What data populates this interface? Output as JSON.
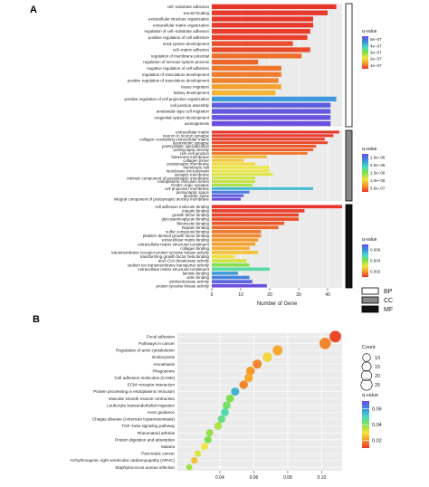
{
  "figure": {
    "panel_a_label": "A",
    "panel_b_label": "B"
  },
  "chart_data": [
    {
      "type": "bar",
      "orientation": "horizontal",
      "xlabel": "Number of Gene",
      "xlim": [
        0,
        45
      ],
      "xticks": [
        "0",
        "10",
        "20",
        "30",
        "40"
      ],
      "xtick_values": [
        0,
        10,
        20,
        30,
        40
      ],
      "legend_categories": [
        {
          "label": "BP",
          "color": "#ffffff"
        },
        {
          "label": "CC",
          "color": "#888888"
        },
        {
          "label": "MF",
          "color": "#111111"
        }
      ],
      "groups": [
        {
          "name": "BP",
          "bar_color": "#ffffff",
          "legend_title": "q-value",
          "legend_ticks": [
            "5e−07",
            "4e−07",
            "3e−07",
            "2e−07",
            "1e−07"
          ],
          "color_stops": [
            "#6a4fe0",
            "#3d8de0",
            "#48d9c4",
            "#7fe04d",
            "#f2e640",
            "#f59a2a",
            "#e8352a"
          ],
          "categories": [
            "cell−substrate adhesion",
            "wound healing",
            "extracellular structure organization",
            "extracellular matrix organization",
            "regulation of cell−substrate adhesion",
            "positive regulation of cell adhesion",
            "renal system development",
            "cell−matrix adhesion",
            "regulation of membrane potential",
            "regulation of nervous system process",
            "negative regulation of cell adhesion",
            "regulation of vasculature development",
            "positive regulation of vasculature development",
            "tissue migration",
            "kidney development",
            "positive regulation of cell projection organization",
            "cell junction assembly",
            "ameboidal−type cell migration",
            "urogenital system development",
            "axonogenesis"
          ],
          "values": [
            43,
            40,
            35,
            35,
            34,
            33,
            28,
            34,
            31,
            16,
            24,
            24,
            23,
            24,
            22,
            43,
            41,
            41,
            41,
            41
          ],
          "qvalues": [
            0.01,
            0.04,
            0.03,
            0.04,
            0.06,
            0.08,
            0.2,
            0.18,
            0.45,
            0.38,
            0.5,
            0.55,
            0.6,
            0.85,
            1.05,
            3.7,
            4.4,
            4.5,
            4.55,
            4.6
          ]
        },
        {
          "name": "CC",
          "bar_color": "#888888",
          "legend_title": "q-value",
          "legend_ticks": [
            "2.5e−06",
            "2.0e−06",
            "1.5e−06",
            "1.0e−06",
            "5.0e−07"
          ],
          "color_stops": [
            "#6a4fe0",
            "#3d8de0",
            "#48d9c4",
            "#7fe04d",
            "#f2e640",
            "#f59a2a",
            "#e8352a"
          ],
          "categories": [
            "extracellular matrix",
            "neuron to neuron synapse",
            "collagen−containing extracellular matrix",
            "asymmetric synapse",
            "postsynaptic specialization",
            "postsynaptic density",
            "cell−cell junction",
            "basement membrane",
            "collagen trimer",
            "postsynaptic membrane",
            "membrane raft",
            "membrane microdomain",
            "synaptic membrane",
            "intrinsic component of postsynaptic membrane",
            "endoplasmic reticulum lumen",
            "GABA−ergic synapse",
            "cell projection membrane",
            "perisynaptic space",
            "dendritic spine",
            "integral component of postsynaptic density membrane"
          ],
          "values": [
            44,
            42,
            39,
            40,
            36,
            35,
            33,
            19,
            11,
            15,
            20,
            20,
            21,
            15,
            15,
            14,
            35,
            13,
            11,
            10
          ],
          "qvalues": [
            0.01,
            0.03,
            0.05,
            0.1,
            0.15,
            0.2,
            0.3,
            0.6,
            0.7,
            0.8,
            0.9,
            0.9,
            0.95,
            1.0,
            1.05,
            1.15,
            1.9,
            2.3,
            2.5,
            2.6
          ]
        },
        {
          "name": "MF",
          "bar_color": "#111111",
          "legend_title": "q-value",
          "legend_ticks": [
            "0.006",
            "0.004",
            "0.002"
          ],
          "color_stops": [
            "#6a4fe0",
            "#3d8de0",
            "#48d9c4",
            "#7fe04d",
            "#f2e640",
            "#f59a2a",
            "#e8352a"
          ],
          "categories": [
            "cell adhesion molecule binding",
            "integrin binding",
            "growth factor binding",
            "glycosaminoglycan binding",
            "fibronectin binding",
            "heparin binding",
            "sulfur compound binding",
            "platelet−derived growth factor binding",
            "extracellular matrix binding",
            "extracellular matrix structural constituent",
            "collagen binding",
            "transmembrane receptor protein tyrosine kinase activity",
            "transforming growth factor beta binding",
            "acyl−CoA desaturase activity",
            "sodium ion transmembrane transporter activity",
            "extracellular matrix structural constituent",
            "laminin binding",
            "actin binding",
            "oxidoreductase activity",
            "protein tyrosine kinase activity"
          ],
          "values": [
            45,
            32,
            30,
            30,
            25,
            23,
            17,
            17,
            16,
            15,
            13,
            16,
            8,
            12,
            13,
            20,
            9,
            13,
            14,
            19
          ],
          "qvalues": [
            0.0001,
            0.0002,
            0.0003,
            0.0004,
            0.0005,
            0.0007,
            0.0009,
            0.0011,
            0.0013,
            0.0014,
            0.0016,
            0.0019,
            0.0024,
            0.0028,
            0.0036,
            0.0045,
            0.0058,
            0.0062,
            0.0068,
            0.0072
          ]
        }
      ]
    },
    {
      "type": "scatter",
      "xlim": [
        0.015,
        0.112
      ],
      "xticks": [
        "0.04",
        "0.06",
        "0.08",
        "0.10"
      ],
      "xtick_values": [
        0.04,
        0.06,
        0.08,
        0.1
      ],
      "size_legend": {
        "title": "Count",
        "values": [
          10,
          15,
          20,
          25
        ]
      },
      "color_legend": {
        "title": "q-value",
        "ticks": [
          "0.06",
          "0.04",
          "0.02"
        ],
        "tick_values": [
          0.06,
          0.04,
          0.02
        ],
        "range": [
          0.01,
          0.07
        ],
        "color_stops": [
          "#6a4fe0",
          "#3d8de0",
          "#48d9c4",
          "#7fe04d",
          "#f2e640",
          "#f59a2a",
          "#e8352a"
        ]
      },
      "categories": [
        "Focal adhesion",
        "Pathways in cancer",
        "Regulation of actin cytoskeleton",
        "Endocytosis",
        "Amoebiasis",
        "Phagosome",
        "Cell adhesion molecules (CAMs)",
        "ECM−receptor interaction",
        "Protein processing in endoplasmic reticulum",
        "Vascular smooth muscle contraction",
        "Leukocyte transendothelial migration",
        "Axon guidance",
        "Chagas disease (American trypanosomiasis)",
        "TGF−beta signaling pathway",
        "Rheumatoid arthritis",
        "Protein digestion and absorption",
        "Malaria",
        "Pancreatic cancer",
        "Arrhythmogenic right ventricular cardiomyopathy (ARVC)",
        "Staphylococcus aureus infection"
      ],
      "x": [
        0.108,
        0.102,
        0.074,
        0.068,
        0.062,
        0.058,
        0.057,
        0.054,
        0.049,
        0.046,
        0.044,
        0.043,
        0.041,
        0.039,
        0.034,
        0.033,
        0.031,
        0.027,
        0.025,
        0.022
      ],
      "counts": [
        27,
        26,
        18,
        16,
        14,
        13,
        13,
        12,
        11,
        10,
        10,
        10,
        9,
        9,
        8,
        8,
        7,
        6,
        6,
        5
      ],
      "qvalues": [
        0.012,
        0.018,
        0.022,
        0.028,
        0.018,
        0.02,
        0.022,
        0.018,
        0.055,
        0.04,
        0.042,
        0.048,
        0.045,
        0.036,
        0.038,
        0.04,
        0.03,
        0.032,
        0.025,
        0.037
      ]
    }
  ]
}
